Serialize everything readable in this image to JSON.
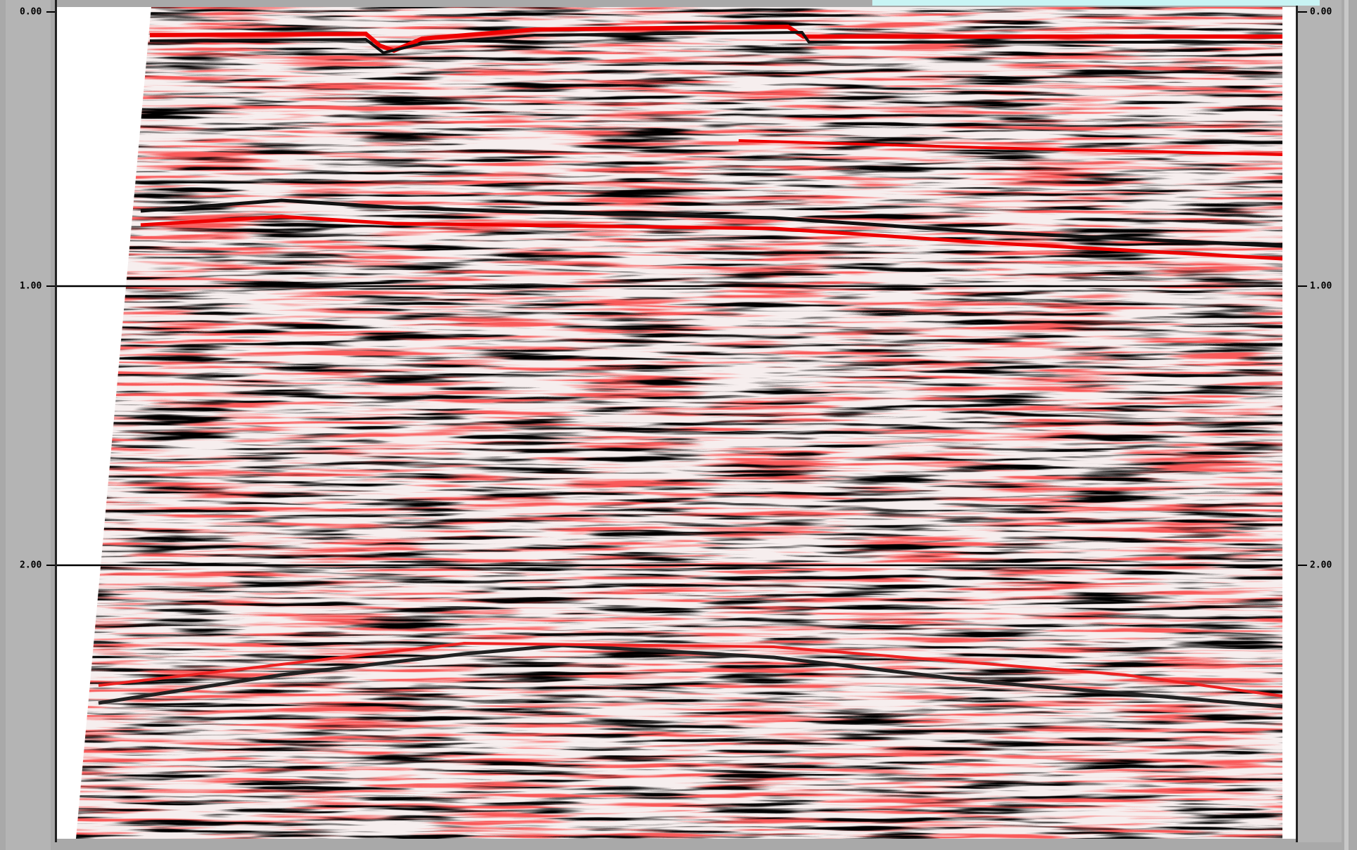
{
  "seismic_view": {
    "time_range": [
      0,
      3
    ],
    "time_ticks": [
      {
        "value": 0,
        "label": "0.00"
      },
      {
        "value": 1,
        "label": "1.00"
      },
      {
        "value": 2,
        "label": "2.00"
      }
    ]
  }
}
